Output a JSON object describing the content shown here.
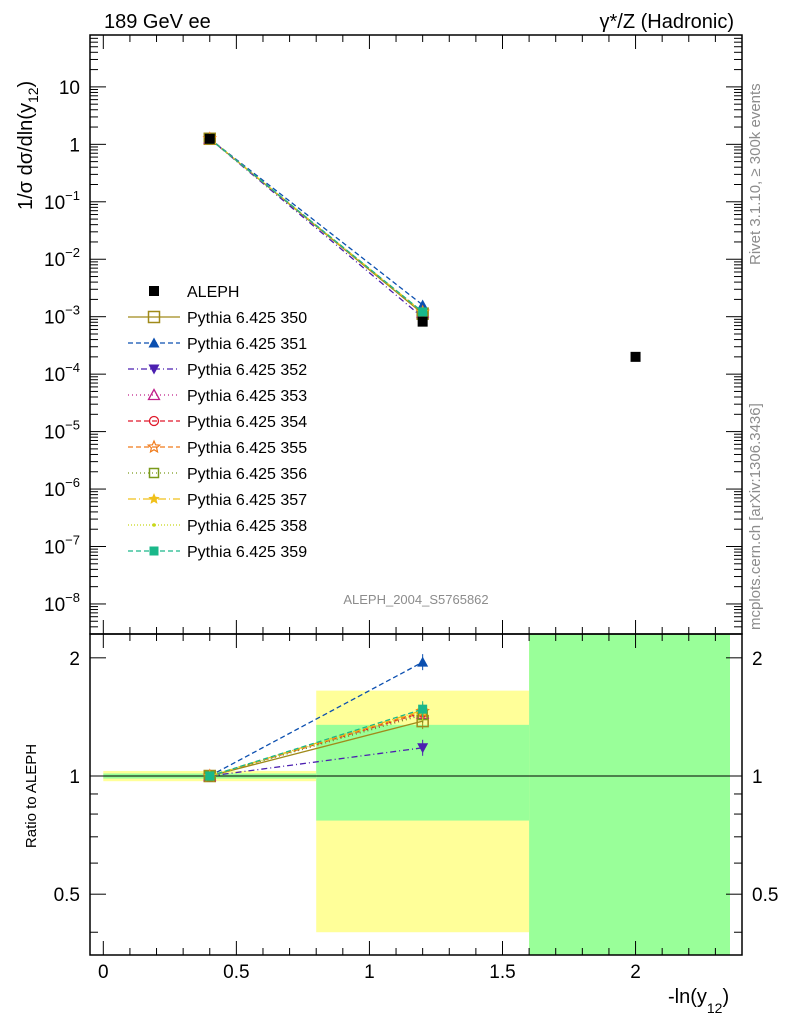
{
  "header": {
    "left": "189 GeV ee",
    "right": "γ*/Z (Hadronic)"
  },
  "side": {
    "rivet": "Rivet 3.1.10, ≥ 300k events",
    "mcplots": "mcplots.cern.ch [arXiv:1306.3436]"
  },
  "watermark": "ALEPH_2004_S5765862",
  "labels": {
    "ylabel_main": "1/σ  dσ/dln(y",
    "ylabel_main_sub": "12",
    "ylabel_main_close": ")",
    "ylabel_ratio": "Ratio to ALEPH",
    "xlabel": "-ln(y",
    "xlabel_sub": "12",
    "xlabel_close": ")"
  },
  "colors": {
    "ALEPH": "#000000",
    "s350": "#a08a1a",
    "s351": "#0b4fb0",
    "s352": "#4b1fb0",
    "s353": "#c0208a",
    "s354": "#e0182a",
    "s355": "#f07a1a",
    "s356": "#7a9a1a",
    "s357": "#f0c01a",
    "s358": "#c8d81a",
    "s359": "#1ab88a",
    "band_outer": "#ffff99",
    "band_inner": "#99ff99"
  },
  "chart_data": {
    "type": "scatter",
    "x_axis": {
      "label": "-ln(y12)",
      "ticks": [
        "0",
        "0.5",
        "1",
        "1.5",
        "2"
      ],
      "range": [
        -0.05,
        2.4
      ]
    },
    "main": {
      "y_scale": "log",
      "y_range": [
        3e-09,
        80
      ],
      "y_ticks": [
        "10^-8",
        "10^-7",
        "10^-6",
        "10^-5",
        "10^-4",
        "10^-3",
        "10^-2",
        "10^-1",
        "1",
        "10"
      ],
      "data": {
        "name": "ALEPH",
        "points": [
          {
            "x": 0.4,
            "y": 1.25
          },
          {
            "x": 1.2,
            "y": 0.00082
          },
          {
            "x": 2.0,
            "y": 0.0002
          }
        ]
      },
      "series": [
        {
          "name": "Pythia 6.425 350",
          "points": [
            {
              "x": 0.4,
              "y": 1.25
            },
            {
              "x": 1.2,
              "y": 0.00113
            }
          ]
        },
        {
          "name": "Pythia 6.425 351",
          "points": [
            {
              "x": 0.4,
              "y": 1.25
            },
            {
              "x": 1.2,
              "y": 0.0016
            }
          ]
        },
        {
          "name": "Pythia 6.425 352",
          "points": [
            {
              "x": 0.4,
              "y": 1.25
            },
            {
              "x": 1.2,
              "y": 0.00097
            }
          ]
        },
        {
          "name": "Pythia 6.425 353",
          "points": [
            {
              "x": 0.4,
              "y": 1.25
            },
            {
              "x": 1.2,
              "y": 0.00118
            }
          ]
        },
        {
          "name": "Pythia 6.425 354",
          "points": [
            {
              "x": 0.4,
              "y": 1.25
            },
            {
              "x": 1.2,
              "y": 0.00119
            }
          ]
        },
        {
          "name": "Pythia 6.425 355",
          "points": [
            {
              "x": 0.4,
              "y": 1.25
            },
            {
              "x": 1.2,
              "y": 0.0012
            }
          ]
        },
        {
          "name": "Pythia 6.425 356",
          "points": [
            {
              "x": 0.4,
              "y": 1.25
            },
            {
              "x": 1.2,
              "y": 0.00117
            }
          ]
        },
        {
          "name": "Pythia 6.425 357",
          "points": [
            {
              "x": 0.4,
              "y": 1.25
            },
            {
              "x": 1.2,
              "y": 0.0012
            }
          ]
        },
        {
          "name": "Pythia 6.425 358",
          "points": [
            {
              "x": 0.4,
              "y": 1.25
            },
            {
              "x": 1.2,
              "y": 0.00119
            }
          ]
        },
        {
          "name": "Pythia 6.425 359",
          "points": [
            {
              "x": 0.4,
              "y": 1.25
            },
            {
              "x": 1.2,
              "y": 0.00121
            }
          ]
        }
      ]
    },
    "ratio": {
      "y_scale": "log",
      "y_range": [
        0.35,
        2.3
      ],
      "y_ticks": [
        "0.5",
        "1",
        "2"
      ],
      "bands": [
        {
          "x_range": [
            0.0,
            0.8
          ],
          "inner": [
            0.985,
            1.015
          ],
          "outer": [
            0.97,
            1.03
          ]
        },
        {
          "x_range": [
            0.8,
            1.6
          ],
          "inner": [
            0.77,
            1.35
          ],
          "outer": [
            0.4,
            1.65
          ]
        },
        {
          "x_range": [
            1.6,
            2.4
          ],
          "inner": [
            0.35,
            2.3
          ],
          "outer": [
            0.35,
            2.3
          ]
        }
      ],
      "series": [
        {
          "name": "Pythia 6.425 350",
          "points": [
            {
              "x": 0.4,
              "y": 1.0
            },
            {
              "x": 1.2,
              "y": 1.38
            }
          ]
        },
        {
          "name": "Pythia 6.425 351",
          "points": [
            {
              "x": 0.4,
              "y": 1.0
            },
            {
              "x": 1.2,
              "y": 1.95
            }
          ]
        },
        {
          "name": "Pythia 6.425 352",
          "points": [
            {
              "x": 0.4,
              "y": 1.0
            },
            {
              "x": 1.2,
              "y": 1.18
            }
          ]
        },
        {
          "name": "Pythia 6.425 353",
          "points": [
            {
              "x": 0.4,
              "y": 1.0
            },
            {
              "x": 1.2,
              "y": 1.44
            }
          ]
        },
        {
          "name": "Pythia 6.425 354",
          "points": [
            {
              "x": 0.4,
              "y": 1.0
            },
            {
              "x": 1.2,
              "y": 1.45
            }
          ]
        },
        {
          "name": "Pythia 6.425 355",
          "points": [
            {
              "x": 0.4,
              "y": 1.0
            },
            {
              "x": 1.2,
              "y": 1.46
            }
          ]
        },
        {
          "name": "Pythia 6.425 356",
          "points": [
            {
              "x": 0.4,
              "y": 1.0
            },
            {
              "x": 1.2,
              "y": 1.43
            }
          ]
        },
        {
          "name": "Pythia 6.425 357",
          "points": [
            {
              "x": 0.4,
              "y": 1.0
            },
            {
              "x": 1.2,
              "y": 1.47
            }
          ]
        },
        {
          "name": "Pythia 6.425 358",
          "points": [
            {
              "x": 0.4,
              "y": 1.0
            },
            {
              "x": 1.2,
              "y": 1.45
            }
          ]
        },
        {
          "name": "Pythia 6.425 359",
          "points": [
            {
              "x": 0.4,
              "y": 1.0
            },
            {
              "x": 1.2,
              "y": 1.48
            }
          ]
        }
      ]
    },
    "legend": {
      "position": "left-center",
      "entries": [
        "ALEPH",
        "Pythia 6.425 350",
        "Pythia 6.425 351",
        "Pythia 6.425 352",
        "Pythia 6.425 353",
        "Pythia 6.425 354",
        "Pythia 6.425 355",
        "Pythia 6.425 356",
        "Pythia 6.425 357",
        "Pythia 6.425 358",
        "Pythia 6.425 359"
      ]
    }
  }
}
